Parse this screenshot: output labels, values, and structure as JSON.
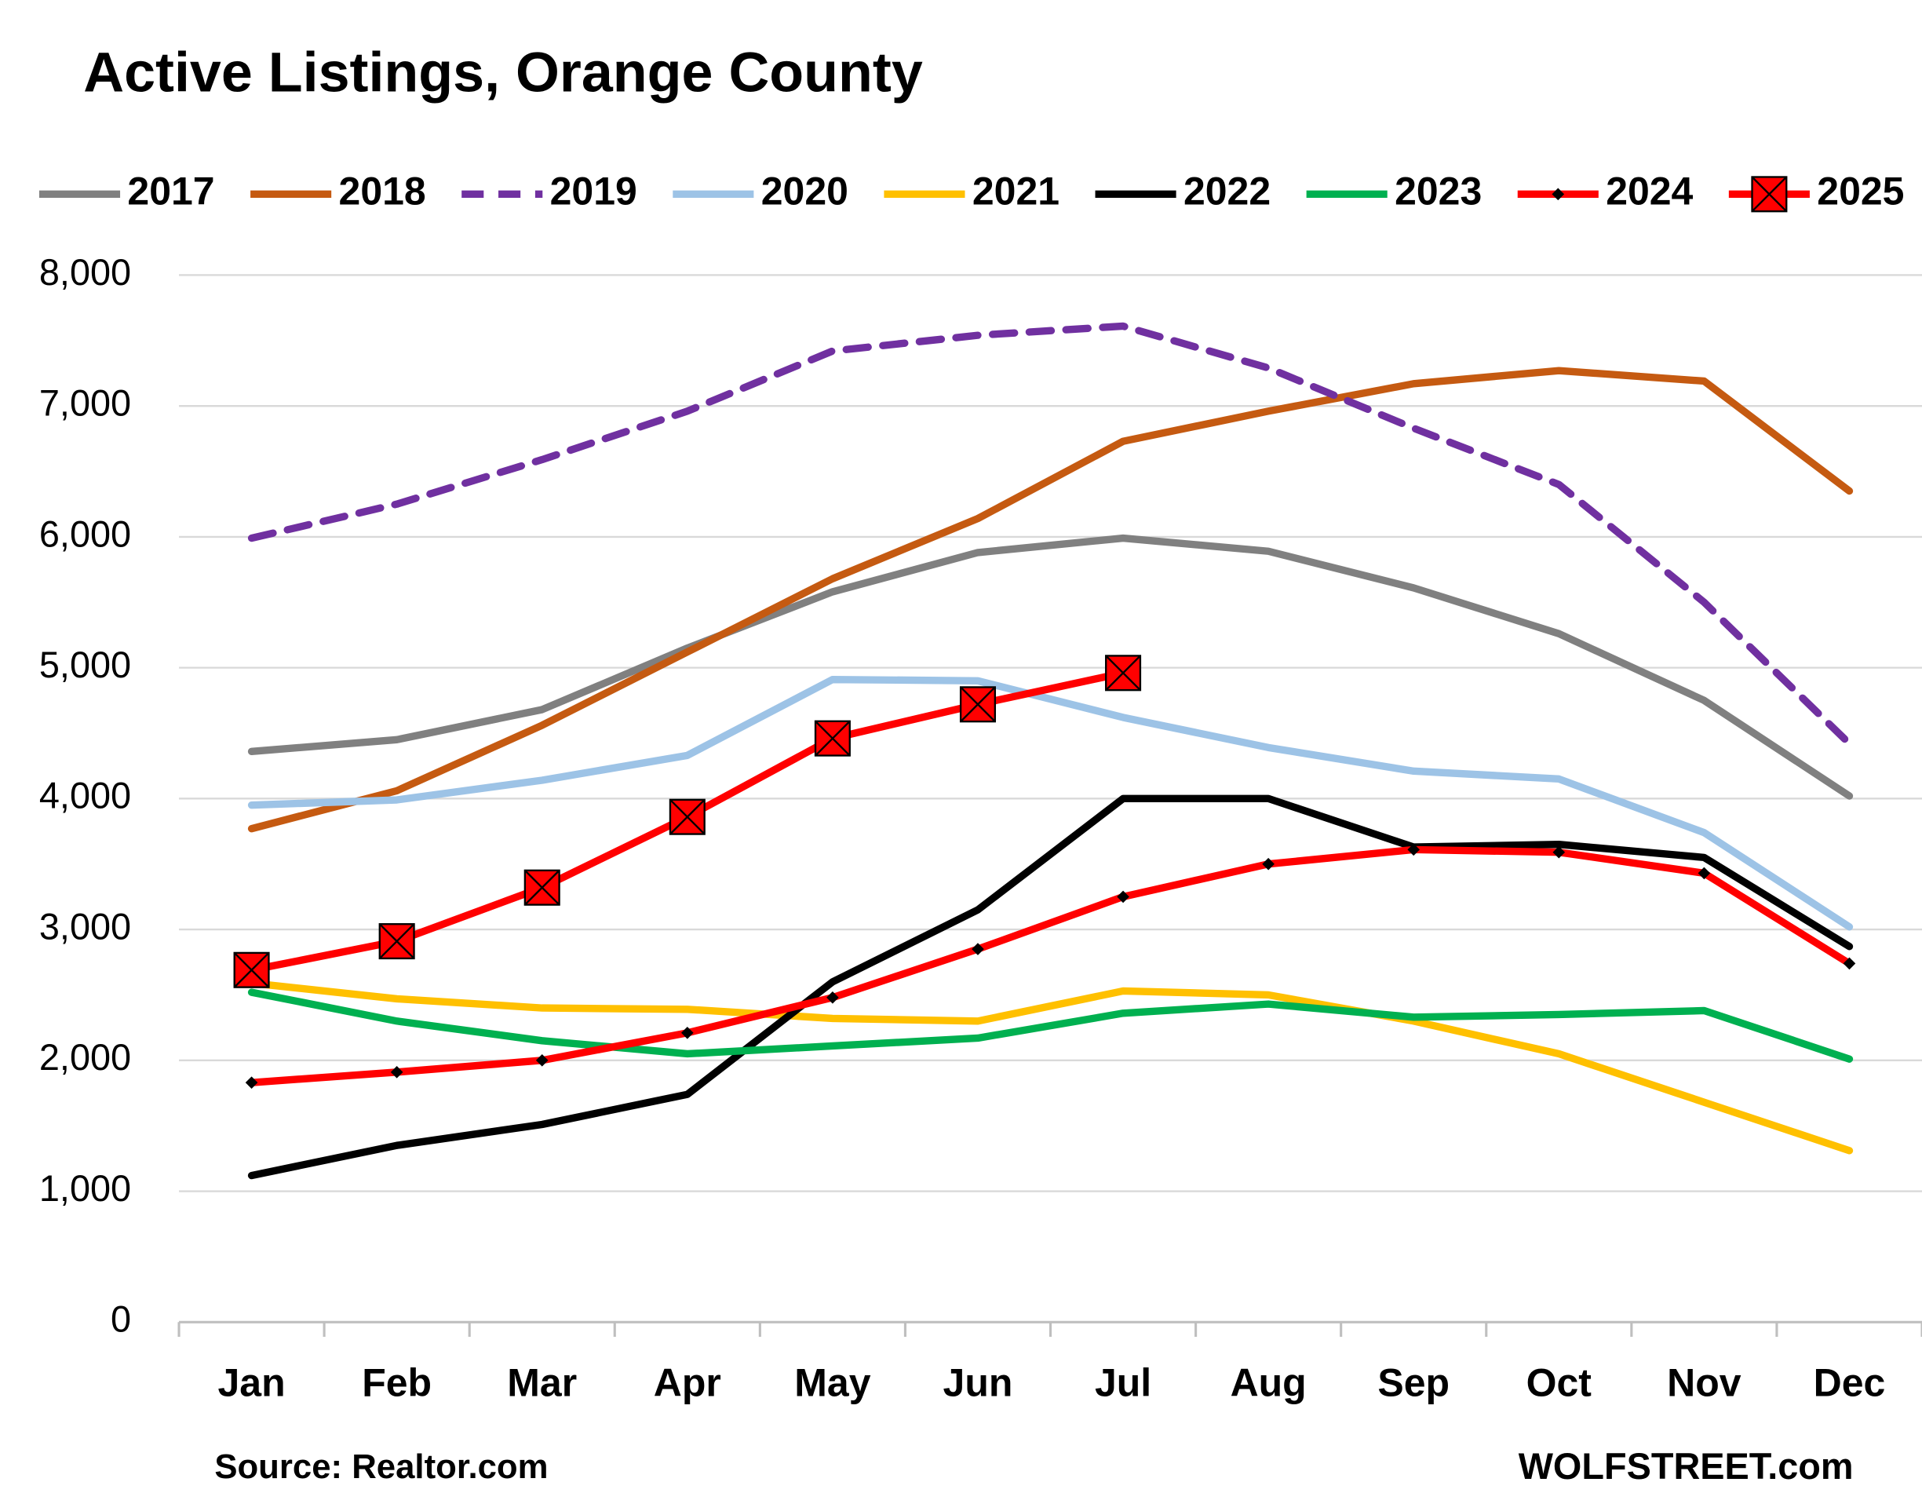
{
  "chart_data": {
    "type": "line",
    "title": "Active Listings, Orange County",
    "source": "Source: Realtor.com",
    "credit": "WOLFSTREET.com",
    "categories": [
      "Jan",
      "Feb",
      "Mar",
      "Apr",
      "May",
      "Jun",
      "Jul",
      "Aug",
      "Sep",
      "Oct",
      "Nov",
      "Dec"
    ],
    "ylim": [
      0,
      8000
    ],
    "yticks": [
      0,
      {
        "value": 1000,
        "label": "1,000"
      },
      {
        "value": 2000,
        "label": "2,000"
      },
      {
        "value": 3000,
        "label": "3,000"
      },
      {
        "value": 4000,
        "label": "4,000"
      },
      {
        "value": 5000,
        "label": "5,000"
      },
      {
        "value": 6000,
        "label": "6,000"
      },
      {
        "value": 7000,
        "label": "7,000"
      },
      {
        "value": 8000,
        "label": "8,000"
      }
    ],
    "grid": true,
    "legend": "top",
    "series": [
      {
        "name": "2017",
        "color": "#808080",
        "values": [
          4360,
          4450,
          4680,
          5150,
          5580,
          5880,
          5990,
          5890,
          5610,
          5260,
          4750,
          4020
        ]
      },
      {
        "name": "2018",
        "color": "#c55a11",
        "values": [
          3770,
          4060,
          4560,
          5120,
          5680,
          6140,
          6730,
          6960,
          7170,
          7270,
          7190,
          6350
        ]
      },
      {
        "name": "2019",
        "color": "#7030a0",
        "dashed": true,
        "values": [
          5990,
          6250,
          6590,
          6960,
          7420,
          7540,
          7610,
          7290,
          6830,
          6400,
          5500,
          4420
        ]
      },
      {
        "name": "2020",
        "color": "#9dc3e6",
        "values": [
          3950,
          3990,
          4140,
          4330,
          4910,
          4900,
          4620,
          4390,
          4210,
          4150,
          3740,
          3020
        ]
      },
      {
        "name": "2021",
        "color": "#ffc000",
        "values": [
          2590,
          2470,
          2400,
          2390,
          2320,
          2300,
          2530,
          2500,
          2300,
          2050,
          1680,
          1310
        ]
      },
      {
        "name": "2022",
        "color": "#000000",
        "values": [
          1120,
          1350,
          1510,
          1740,
          2600,
          3150,
          4000,
          4000,
          3630,
          3650,
          3550,
          2870
        ]
      },
      {
        "name": "2023",
        "color": "#00b050",
        "values": [
          2520,
          2300,
          2150,
          2050,
          2110,
          2170,
          2360,
          2430,
          2330,
          2350,
          2380,
          2010
        ]
      },
      {
        "name": "2024",
        "color": "#ff0000",
        "marker": "diamond",
        "values": [
          1830,
          1910,
          2000,
          2210,
          2480,
          2850,
          3250,
          3500,
          3610,
          3590,
          3430,
          2740
        ]
      },
      {
        "name": "2025",
        "color": "#ff0000",
        "marker": "x-square",
        "values": [
          2690,
          2910,
          3320,
          3860,
          4460,
          4720,
          4960,
          null,
          null,
          null,
          null,
          null
        ]
      }
    ]
  }
}
